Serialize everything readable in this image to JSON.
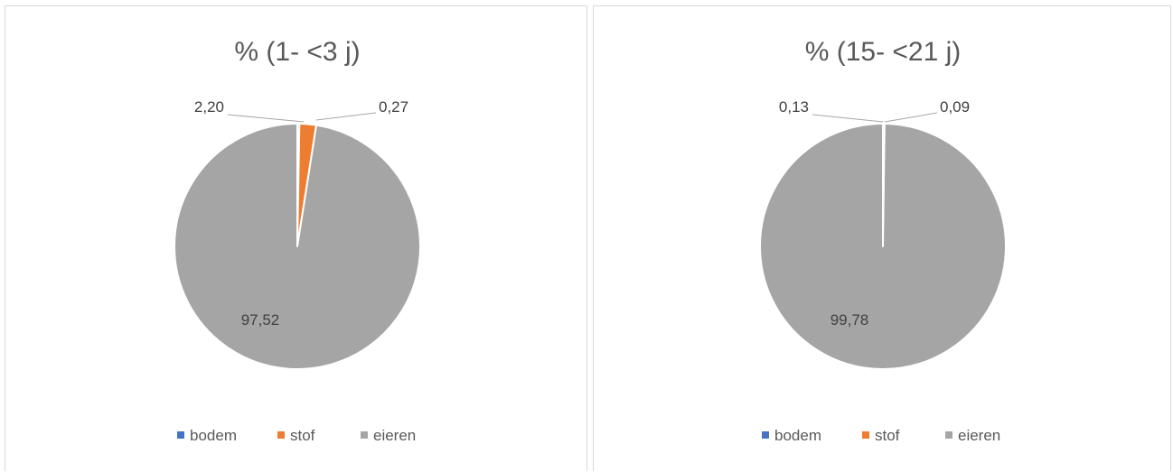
{
  "chart_data": [
    {
      "type": "pie",
      "title": "% (1- <3 j)",
      "categories": [
        "bodem",
        "stof",
        "eieren"
      ],
      "values": [
        0.27,
        2.2,
        97.52
      ],
      "data_labels": [
        "0,27",
        "2,20",
        "97,52"
      ],
      "colors": [
        "#4472c4",
        "#ed7d31",
        "#a5a5a5"
      ],
      "legend": {
        "position": "bottom",
        "entries": [
          "bodem",
          "stof",
          "eieren"
        ]
      }
    },
    {
      "type": "pie",
      "title": "% (15- <21 j)",
      "categories": [
        "bodem",
        "stof",
        "eieren"
      ],
      "values": [
        0.09,
        0.13,
        99.78
      ],
      "data_labels": [
        "0,09",
        "0,13",
        "99,78"
      ],
      "colors": [
        "#4472c4",
        "#ed7d31",
        "#a5a5a5"
      ],
      "legend": {
        "position": "bottom",
        "entries": [
          "bodem",
          "stof",
          "eieren"
        ]
      }
    }
  ]
}
